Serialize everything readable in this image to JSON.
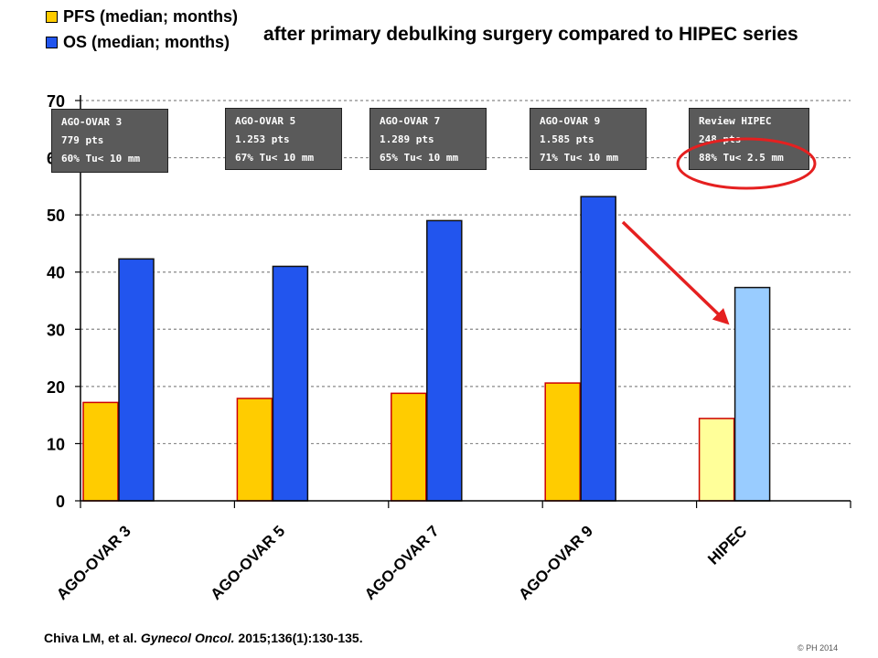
{
  "title": "after primary debulking surgery compared to HIPEC series",
  "legend": [
    {
      "label": "PFS (median; months)",
      "color": "#FFCC00"
    },
    {
      "label": "OS (median; months)",
      "color": "#2255EE"
    }
  ],
  "chart_data": {
    "type": "bar",
    "categories": [
      "AGO-OVAR 3",
      "AGO-OVAR 5",
      "AGO-OVAR 7",
      "AGO-OVAR 9",
      "HIPEC"
    ],
    "series": [
      {
        "name": "PFS (median; months)",
        "values": [
          17.2,
          17.9,
          18.8,
          20.6,
          14.4
        ],
        "color": "#FFCC00",
        "highlight_color": "#FFFF99"
      },
      {
        "name": "OS (median; months)",
        "values": [
          42.3,
          41.0,
          49.0,
          53.2,
          37.3
        ],
        "color": "#2255EE",
        "highlight_color": "#99CCFF"
      }
    ],
    "ylim": [
      0,
      70
    ],
    "yticks": [
      0,
      10,
      20,
      30,
      40,
      50,
      60,
      70
    ],
    "grid": "horizontal dashed",
    "legend_position": "top-left"
  },
  "info_boxes": [
    {
      "lines": [
        "AGO-OVAR 3",
        "779 pts",
        "60% Tu< 10 mm"
      ]
    },
    {
      "lines": [
        "AGO-OVAR 5",
        "1.253 pts",
        "67% Tu< 10 mm"
      ]
    },
    {
      "lines": [
        "AGO-OVAR 7",
        "1.289 pts",
        "65% Tu< 10 mm"
      ]
    },
    {
      "lines": [
        "AGO-OVAR 9",
        "1.585 pts",
        "71% Tu< 10 mm"
      ]
    },
    {
      "lines": [
        "Review HIPEC",
        "248 pts",
        "88% Tu< 2.5 mm"
      ]
    }
  ],
  "annotation_colors": {
    "arrow": "#E52020",
    "ellipse": "#E52020"
  },
  "citation": {
    "authors": "Chiva LM, et al.",
    "journal": "Gynecol Oncol.",
    "ref": "2015;136(1):130-135."
  },
  "copyright": "© PH 2014"
}
